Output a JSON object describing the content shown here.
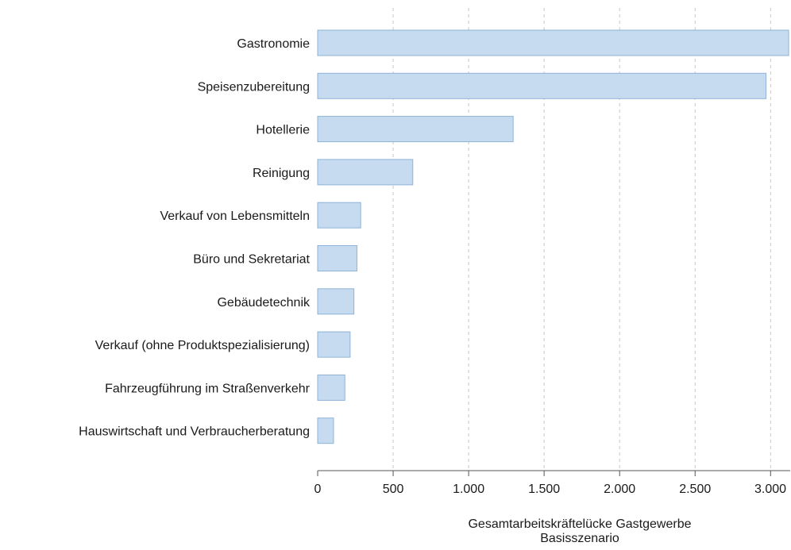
{
  "colors": {
    "bar_fill": "#c6dbef",
    "bar_stroke": "#8fb3d6",
    "grid": "#c8c8c8",
    "axis": "#555555"
  },
  "chart_data": {
    "type": "bar",
    "orientation": "horizontal",
    "categories": [
      "Gastronomie",
      "Speisenzubereitung",
      "Hotellerie",
      "Reinigung",
      "Verkauf von Lebensmitteln",
      "Büro und Sekretariat",
      "Gebäudetechnik",
      "Verkauf (ohne Produktspezialisierung)",
      "Fahrzeugführung im Straßenverkehr",
      "Hauswirtschaft und Verbraucherberatung"
    ],
    "values": [
      3120,
      2970,
      1295,
      630,
      285,
      260,
      240,
      215,
      180,
      105
    ],
    "xlim": [
      0,
      3130
    ],
    "xticks": [
      0,
      500,
      1000,
      1500,
      2000,
      2500,
      3000
    ],
    "xtick_labels": [
      "0",
      "500",
      "1.000",
      "1.500",
      "2.000",
      "2.500",
      "3.000"
    ],
    "xlabel": [
      "Gesamtarbeitskräftelücke Gastgewerbe",
      "Basisszenario"
    ],
    "grid": "vertical dashed"
  }
}
